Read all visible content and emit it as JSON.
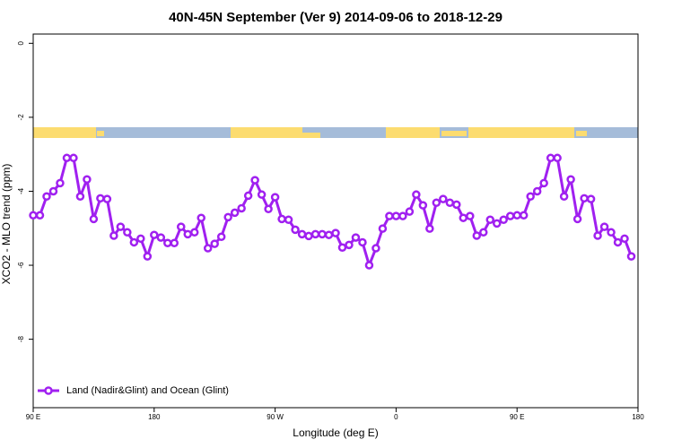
{
  "chart_data": {
    "type": "line",
    "title": "40N-45N September (Ver 9)   2014-09-06 to 2018-12-29",
    "x_label": "Longitude (deg E)",
    "y_label": "XCO2 - MLO trend (ppm)",
    "x": [
      90,
      95,
      100,
      105,
      110,
      115,
      120,
      125,
      130,
      135,
      140,
      145,
      150,
      155,
      160,
      165,
      170,
      175,
      180,
      185,
      190,
      195,
      200,
      205,
      210,
      215,
      220,
      225,
      230,
      235,
      240,
      245,
      250,
      255,
      260,
      265,
      270,
      275,
      280,
      285,
      290,
      295,
      300,
      305,
      310,
      315,
      320,
      325,
      330,
      335,
      340,
      345,
      350,
      355,
      360,
      365,
      370,
      375,
      380,
      385,
      390,
      395,
      400,
      405,
      410,
      415,
      420,
      425,
      430,
      435,
      440,
      445,
      450,
      455,
      460,
      465,
      470,
      475,
      480,
      485,
      490,
      495,
      500,
      505,
      510,
      515,
      520,
      525,
      530,
      535
    ],
    "series": [
      {
        "name": "Land (Nadir&Glint) and Ocean (Glint)",
        "color": "#a020f0",
        "values": [
          -4.65,
          -4.65,
          -4.14,
          -4.0,
          -3.78,
          -3.1,
          -3.1,
          -4.14,
          -3.68,
          -4.75,
          -4.19,
          -4.21,
          -5.2,
          -4.96,
          -5.11,
          -5.38,
          -5.28,
          -5.76,
          -5.18,
          -5.25,
          -5.4,
          -5.4,
          -4.96,
          -5.16,
          -5.11,
          -4.72,
          -5.54,
          -5.42,
          -5.23,
          -4.7,
          -4.58,
          -4.46,
          -4.12,
          -3.7,
          -4.09,
          -4.48,
          -4.16,
          -4.75,
          -4.77,
          -5.04,
          -5.16,
          -5.21,
          -5.16,
          -5.16,
          -5.18,
          -5.13,
          -5.52,
          -5.45,
          -5.25,
          -5.38,
          -6.0,
          -5.54,
          -5.01,
          -4.67,
          -4.67,
          -4.67,
          -4.55,
          -4.09,
          -4.38,
          -5.01,
          -4.31,
          -4.21,
          -4.31,
          -4.36,
          -4.72,
          -4.67,
          -5.2,
          -5.11,
          -4.77,
          -4.87,
          -4.77,
          -4.67,
          -4.65,
          -4.65,
          -4.14,
          -4.0,
          -3.78,
          -3.1,
          -3.1,
          -4.14,
          -3.68,
          -4.75,
          -4.19,
          -4.21,
          -5.2,
          -4.96,
          -5.11,
          -5.38,
          -5.28,
          -5.76
        ]
      }
    ],
    "xlim": [
      90,
      540
    ],
    "xticks": [
      {
        "value": 90,
        "label": "90 E"
      },
      {
        "value": 180,
        "label": "180"
      },
      {
        "value": 270,
        "label": "90 W"
      },
      {
        "value": 360,
        "label": "0"
      },
      {
        "value": 450,
        "label": "90 E"
      },
      {
        "value": 540,
        "label": "180"
      }
    ],
    "ylim": [
      -9.85,
      0.25
    ],
    "yticks": [
      0,
      -2,
      -4,
      -6,
      -8
    ],
    "legend": "bottomleft",
    "grid": false
  }
}
